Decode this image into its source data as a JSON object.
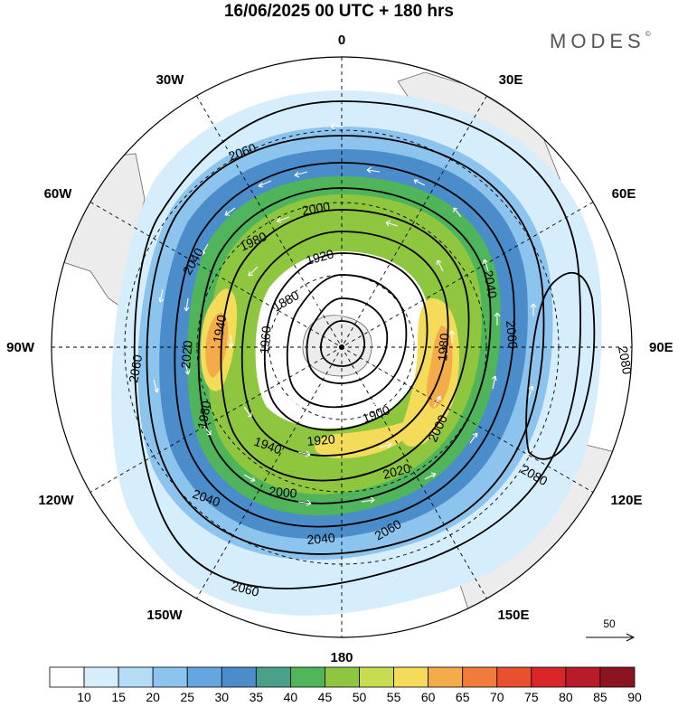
{
  "header": {
    "title": "16/06/2025  00 UTC  + 180 hrs",
    "brand": "MODES"
  },
  "map": {
    "projection": "south-polar-stereographic",
    "center": "south-pole",
    "longitude_labels": [
      "0",
      "30E",
      "60E",
      "90E",
      "120E",
      "150E",
      "180",
      "150W",
      "120W",
      "90W",
      "60W",
      "30W"
    ],
    "contour_labels": [
      "2080",
      "2080",
      "2060",
      "2060",
      "2060",
      "2060",
      "2060",
      "2040",
      "2040",
      "2040",
      "2040",
      "2020",
      "2020",
      "2000",
      "2000",
      "2000",
      "1980",
      "1980",
      "1960",
      "1940",
      "1940",
      "1920",
      "1920",
      "1900",
      "1880",
      "1980"
    ],
    "wind_scale_label": "50"
  },
  "colorbar": {
    "ticks": [
      "10",
      "15",
      "20",
      "25",
      "30",
      "35",
      "40",
      "45",
      "50",
      "55",
      "60",
      "65",
      "70",
      "75",
      "80",
      "85",
      "90"
    ],
    "colors": [
      "#ffffff",
      "#d6eefc",
      "#b4dcf6",
      "#8cc4ee",
      "#64a6df",
      "#4b8cca",
      "#48a08a",
      "#4fb45a",
      "#8ec63f",
      "#c8dc50",
      "#f4dc5a",
      "#f4ac4a",
      "#f07b3a",
      "#e8502e",
      "#d8262a",
      "#b81c28",
      "#8c1420"
    ]
  }
}
